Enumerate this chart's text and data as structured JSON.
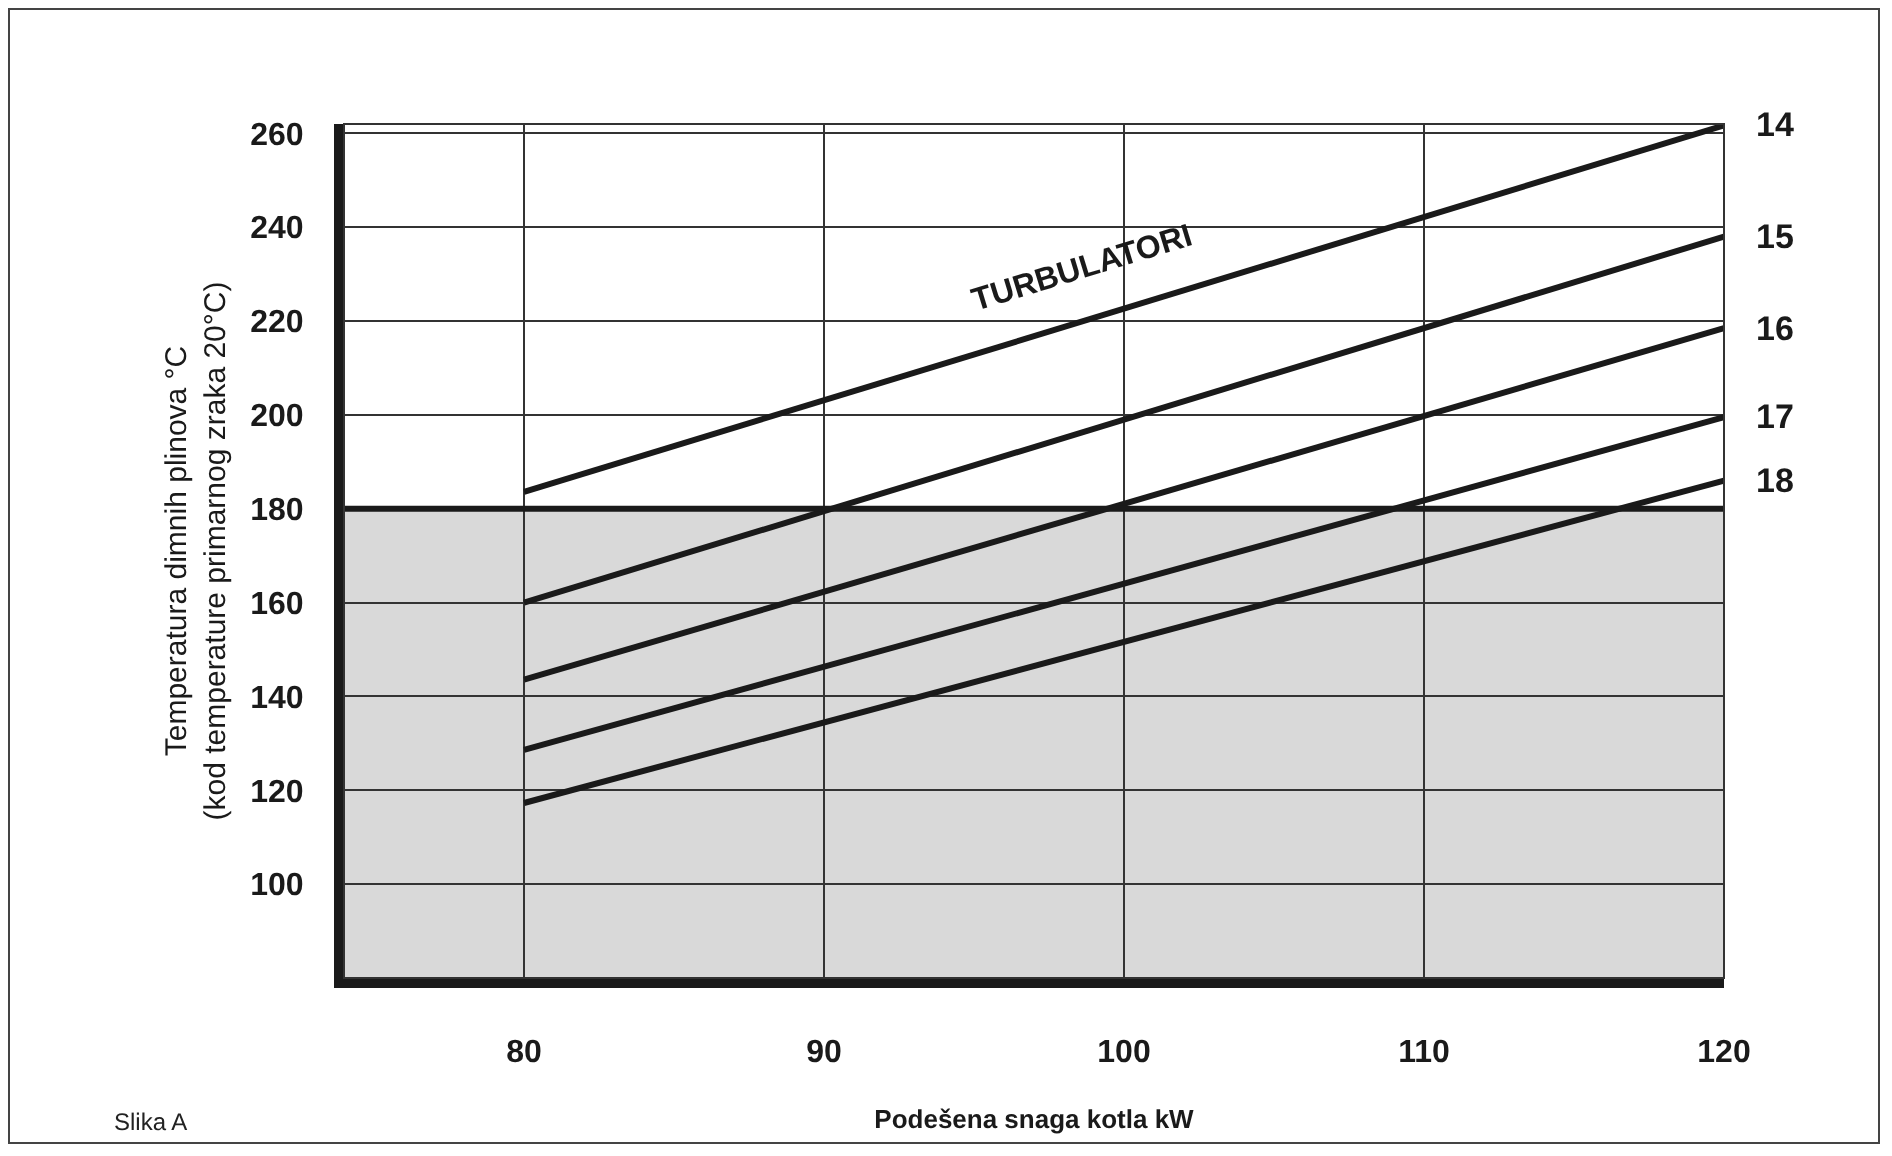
{
  "chart_data": {
    "type": "line",
    "xlabel": "Podešena snaga kotla kW",
    "ylabel": "Temperatura dimnih plinova °C\n(kod temperature primarnog zraka 20°C)",
    "x": [
      80,
      120
    ],
    "series": [
      {
        "name": "14",
        "color": "#1a1a1a",
        "values": [
          183.6,
          261.7
        ]
      },
      {
        "name": "15",
        "color": "#1a1a1a",
        "values": [
          160,
          238
        ]
      },
      {
        "name": "16",
        "color": "#1a1a1a",
        "values": [
          143.6,
          218.5
        ]
      },
      {
        "name": "17",
        "color": "#1a1a1a",
        "values": [
          128.6,
          199.5
        ]
      },
      {
        "name": "18",
        "color": "#1a1a1a",
        "values": [
          117.3,
          186
        ]
      }
    ],
    "xlim": [
      74,
      120
    ],
    "xticks": [
      80,
      90,
      100,
      110,
      120
    ],
    "ylim": [
      80,
      262
    ],
    "yticks": [
      100,
      120,
      140,
      160,
      180,
      200,
      220,
      240,
      260
    ],
    "grid": true,
    "legend": false,
    "marker": "none",
    "line_style": "solid",
    "bands": [
      {
        "axis": "y",
        "from": 80,
        "to": 180,
        "color": "#d9d9d9"
      }
    ],
    "ref_lines": [
      {
        "axis": "y",
        "value": 180,
        "color": "#1a1a1a"
      }
    ],
    "annotations": [
      "TURBULATORI",
      "Slika A"
    ]
  }
}
